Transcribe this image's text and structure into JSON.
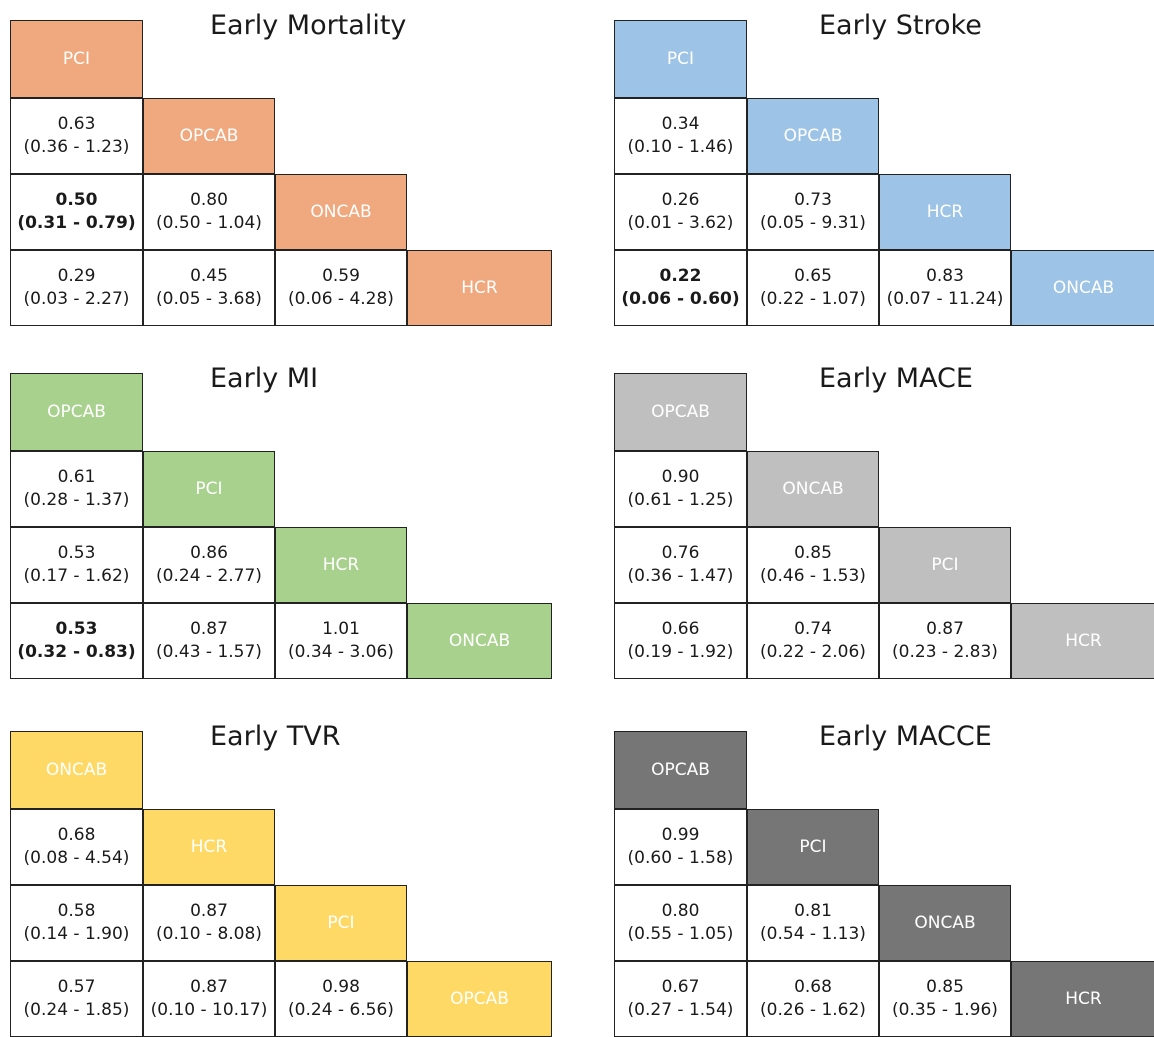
{
  "chart_data": [
    {
      "type": "table",
      "title": "Early Mortality",
      "treatments": [
        "PCI",
        "OPCAB",
        "ONCAB",
        "HCR"
      ],
      "colors": {
        "fill": "#f0a87e",
        "text": "#ffffff"
      },
      "rows": [
        [
          {
            "value": "0.63",
            "ci": "(0.36 - 1.23)",
            "bold": false
          }
        ],
        [
          {
            "value": "0.50",
            "ci": "(0.31 - 0.79)",
            "bold": true
          },
          {
            "value": "0.80",
            "ci": "(0.50 - 1.04)",
            "bold": false
          }
        ],
        [
          {
            "value": "0.29",
            "ci": "(0.03 - 2.27)",
            "bold": false
          },
          {
            "value": "0.45",
            "ci": "(0.05 - 3.68)",
            "bold": false
          },
          {
            "value": "0.59",
            "ci": "(0.06 - 4.28)",
            "bold": false
          }
        ]
      ]
    },
    {
      "type": "table",
      "title": "Early Stroke",
      "treatments": [
        "PCI",
        "OPCAB",
        "HCR",
        "ONCAB"
      ],
      "colors": {
        "fill": "#9dc3e6",
        "text": "#ffffff"
      },
      "rows": [
        [
          {
            "value": "0.34",
            "ci": "(0.10 - 1.46)",
            "bold": false
          }
        ],
        [
          {
            "value": "0.26",
            "ci": "(0.01 - 3.62)",
            "bold": false
          },
          {
            "value": "0.73",
            "ci": "(0.05 - 9.31)",
            "bold": false
          }
        ],
        [
          {
            "value": "0.22",
            "ci": "(0.06 - 0.60)",
            "bold": true
          },
          {
            "value": "0.65",
            "ci": "(0.22 - 1.07)",
            "bold": false
          },
          {
            "value": "0.83",
            "ci": "(0.07 - 11.24)",
            "bold": false
          }
        ]
      ]
    },
    {
      "type": "table",
      "title": "Early MI",
      "treatments": [
        "OPCAB",
        "PCI",
        "HCR",
        "ONCAB"
      ],
      "colors": {
        "fill": "#a9d18e",
        "text": "#ffffff"
      },
      "rows": [
        [
          {
            "value": "0.61",
            "ci": "(0.28 - 1.37)",
            "bold": false
          }
        ],
        [
          {
            "value": "0.53",
            "ci": "(0.17 - 1.62)",
            "bold": false
          },
          {
            "value": "0.86",
            "ci": "(0.24 - 2.77)",
            "bold": false
          }
        ],
        [
          {
            "value": "0.53",
            "ci": "(0.32 - 0.83)",
            "bold": true
          },
          {
            "value": "0.87",
            "ci": "(0.43 - 1.57)",
            "bold": false
          },
          {
            "value": "1.01",
            "ci": "(0.34 - 3.06)",
            "bold": false
          }
        ]
      ]
    },
    {
      "type": "table",
      "title": "Early MACE",
      "treatments": [
        "OPCAB",
        "ONCAB",
        "PCI",
        "HCR"
      ],
      "colors": {
        "fill": "#bfbfbf",
        "text": "#ffffff"
      },
      "rows": [
        [
          {
            "value": "0.90",
            "ci": "(0.61 - 1.25)",
            "bold": false
          }
        ],
        [
          {
            "value": "0.76",
            "ci": "(0.36 - 1.47)",
            "bold": false
          },
          {
            "value": "0.85",
            "ci": "(0.46 - 1.53)",
            "bold": false
          }
        ],
        [
          {
            "value": "0.66",
            "ci": "(0.19 - 1.92)",
            "bold": false
          },
          {
            "value": "0.74",
            "ci": "(0.22 - 2.06)",
            "bold": false
          },
          {
            "value": "0.87",
            "ci": "(0.23 - 2.83)",
            "bold": false
          }
        ]
      ]
    },
    {
      "type": "table",
      "title": "Early TVR",
      "treatments": [
        "ONCAB",
        "HCR",
        "PCI",
        "OPCAB"
      ],
      "colors": {
        "fill": "#ffd966",
        "text": "#ffffff"
      },
      "rows": [
        [
          {
            "value": "0.68",
            "ci": "(0.08 - 4.54)",
            "bold": false
          }
        ],
        [
          {
            "value": "0.58",
            "ci": "(0.14 - 1.90)",
            "bold": false
          },
          {
            "value": "0.87",
            "ci": "(0.10 - 8.08)",
            "bold": false
          }
        ],
        [
          {
            "value": "0.57",
            "ci": "(0.24 - 1.85)",
            "bold": false
          },
          {
            "value": "0.87",
            "ci": "(0.10 - 10.17)",
            "bold": false
          },
          {
            "value": "0.98",
            "ci": "(0.24 - 6.56)",
            "bold": false
          }
        ]
      ]
    },
    {
      "type": "table",
      "title": "Early MACCE",
      "treatments": [
        "OPCAB",
        "PCI",
        "ONCAB",
        "HCR"
      ],
      "colors": {
        "fill": "#767676",
        "text": "#ffffff"
      },
      "rows": [
        [
          {
            "value": "0.99",
            "ci": "(0.60 - 1.58)",
            "bold": false
          }
        ],
        [
          {
            "value": "0.80",
            "ci": "(0.55 - 1.05)",
            "bold": false
          },
          {
            "value": "0.81",
            "ci": "(0.54 - 1.13)",
            "bold": false
          }
        ],
        [
          {
            "value": "0.67",
            "ci": "(0.27 - 1.54)",
            "bold": false
          },
          {
            "value": "0.68",
            "ci": "(0.26 - 1.62)",
            "bold": false
          },
          {
            "value": "0.85",
            "ci": "(0.35 - 1.96)",
            "bold": false
          }
        ]
      ]
    }
  ]
}
